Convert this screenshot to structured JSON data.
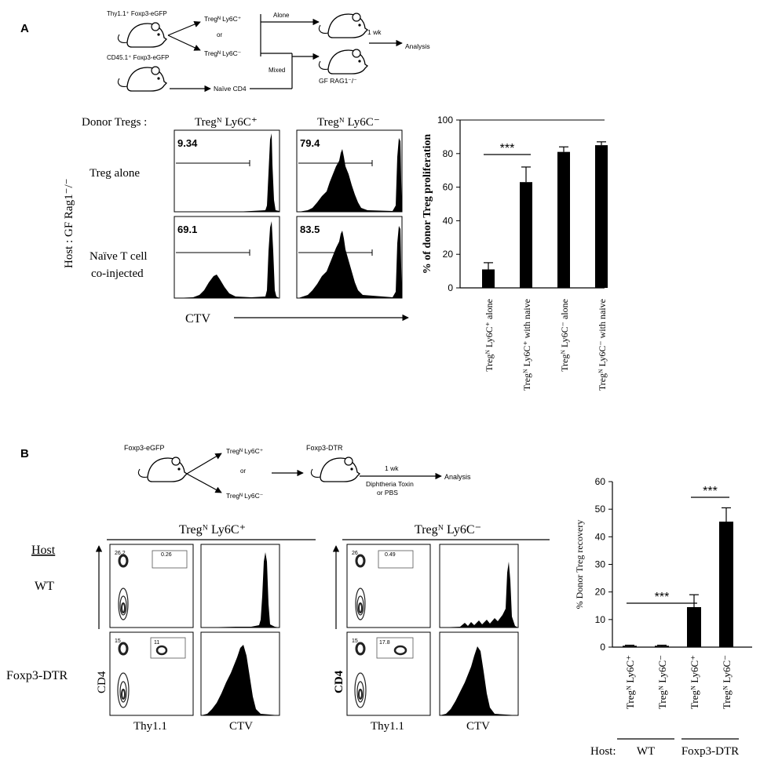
{
  "panel_a": {
    "letter": "A",
    "schematic": {
      "donor1": "Thy1.1⁺ Foxp3-eGFP",
      "donor2": "CD45.1⁺ Foxp3-eGFP",
      "sort1": "Tregᴺ Ly6C⁺",
      "or": "or",
      "sort2": "Tregᴺ Ly6C⁻",
      "naive": "Naïve CD4",
      "alone": "Alone",
      "mixed": "Mixed",
      "recipient": "GF RAG1⁻/⁻",
      "time": "1 wk",
      "analysis": "Analysis"
    },
    "donor_tregs_label": "Donor Tregs :",
    "col1": "Tregᴺ Ly6C⁺",
    "col2": "Tregᴺ Ly6C⁻",
    "host_label": "Host : GF Rag1⁻/⁻",
    "row1": "Treg alone",
    "row2a": "Naïve T cell",
    "row2b": "co-injected",
    "xaxis": "CTV",
    "hist_values": [
      "9.34",
      "79.4",
      "69.1",
      "83.5"
    ]
  },
  "panel_b": {
    "letter": "B",
    "schematic": {
      "donor": "Foxp3-eGFP",
      "sort1": "Tregᴺ Ly6C⁺",
      "or": "or",
      "sort2": "Tregᴺ Ly6C⁻",
      "recipient": "Foxp3-DTR",
      "time": "1 wk",
      "treat1": "Diphtheria Toxin",
      "treat2": "or PBS",
      "analysis": "Analysis"
    },
    "group1": "Tregᴺ Ly6C⁺",
    "group2": "Tregᴺ Ly6C⁻",
    "host_header": "Host",
    "row1": "WT",
    "row2": "Foxp3-DTR",
    "y_label": "CD4",
    "x_label1": "Thy1.1",
    "x_label2": "CTV",
    "gate_values": [
      {
        "left": "26.2",
        "right": "0.26"
      },
      {
        "left": "15",
        "right": "11"
      },
      {
        "left": "26",
        "right": "0.49"
      },
      {
        "left": "15",
        "right": "17.8"
      }
    ]
  },
  "chart_data": [
    {
      "type": "bar",
      "ylabel": "% of donor Treg proliferation",
      "ylim": [
        0,
        100
      ],
      "yticks": [
        0,
        20,
        40,
        60,
        80,
        100
      ],
      "categories": [
        "Tregᴺ Ly6C⁺ alone",
        "Tregᴺ Ly6C⁺ with naive",
        "Tregᴺ Ly6C⁻ alone",
        "Tregᴺ Ly6C⁻ with naive"
      ],
      "values": [
        11,
        63,
        81,
        85
      ],
      "errors": [
        4,
        9,
        3,
        2
      ],
      "significance": [
        {
          "from": 0,
          "to": 1,
          "label": "***"
        }
      ],
      "color": "#000000"
    },
    {
      "type": "bar",
      "ylabel": "% Donor Treg recovery",
      "ylim": [
        0,
        60
      ],
      "yticks": [
        0,
        10,
        20,
        30,
        40,
        50,
        60
      ],
      "categories": [
        "Tregᴺ Ly6C⁺",
        "Tregᴺ Ly6C⁻",
        "Tregᴺ Ly6C⁺",
        "Tregᴺ Ly6C⁻"
      ],
      "values": [
        0.5,
        0.5,
        14.5,
        45.5
      ],
      "errors": [
        0.2,
        0.2,
        4.5,
        5
      ],
      "significance": [
        {
          "from": 0,
          "to": 2,
          "label": "***"
        },
        {
          "from": 2,
          "to": 3,
          "label": "***"
        }
      ],
      "host_prefix": "Host:",
      "host_groups": [
        "WT",
        "Foxp3-DTR"
      ],
      "color": "#000000"
    }
  ]
}
